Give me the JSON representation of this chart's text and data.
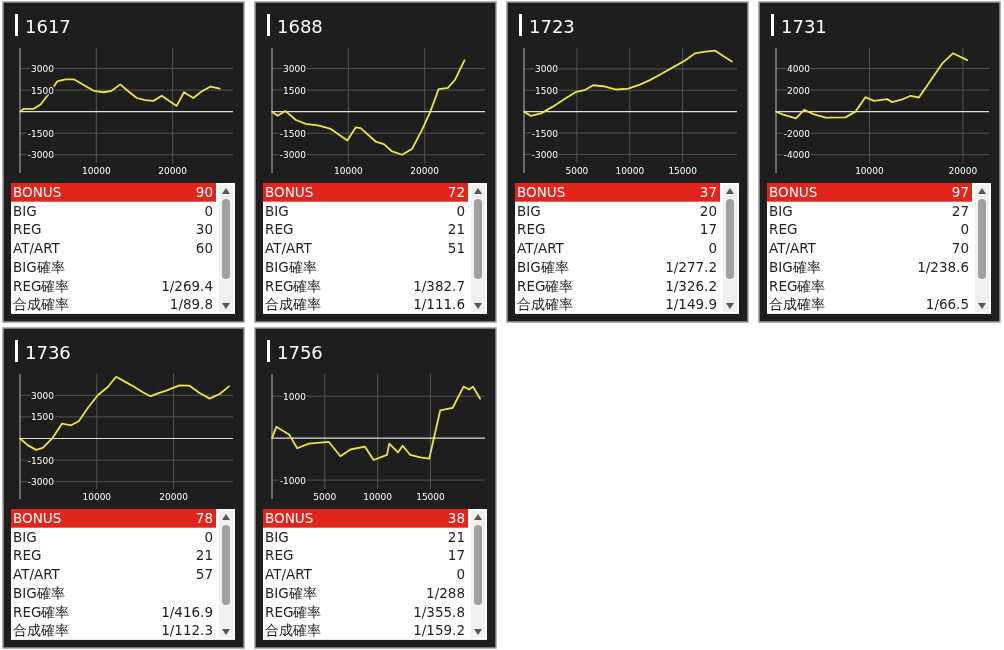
{
  "chart_data": [
    {
      "type": "line",
      "title": "1617",
      "color": "#ebe24e",
      "grid": true,
      "xlim": [
        0,
        27900
      ],
      "ylim": [
        -4270,
        4430
      ],
      "xticks": [
        10000,
        20000
      ],
      "yticks": [
        -3000,
        -1500,
        1500,
        3000
      ],
      "ref_lines": [
        {
          "axis": "y",
          "value": 0
        }
      ],
      "x": [
        0,
        500,
        1800,
        2700,
        4000,
        4870,
        5960,
        7050,
        8350,
        9650,
        10960,
        12000,
        13130,
        14220,
        15300,
        16400,
        17480,
        18570,
        19650,
        20520,
        21480,
        22700,
        23780,
        24960,
        26170
      ],
      "values": [
        0,
        200,
        200,
        500,
        1400,
        2100,
        2250,
        2250,
        1850,
        1450,
        1350,
        1450,
        1900,
        1400,
        950,
        800,
        750,
        1100,
        700,
        400,
        1350,
        950,
        1400,
        1750,
        1600
      ]
    },
    {
      "type": "other",
      "categories": [
        "BONUS",
        "BIG",
        "REG",
        "AT/ART",
        "BIG確率",
        "REG確率",
        "合成確率"
      ],
      "value_labels": [
        "90",
        "0",
        "30",
        "60",
        null,
        "1/269.4",
        "1/89.8"
      ]
    },
    {
      "type": "line",
      "title": "1688",
      "color": "#ebe24e",
      "grid": true,
      "xlim": [
        0,
        27900
      ],
      "ylim": [
        -4270,
        4430
      ],
      "xticks": [
        10000,
        20000
      ],
      "yticks": [
        -3000,
        -1500,
        1500,
        3000
      ],
      "ref_lines": [
        {
          "axis": "y",
          "value": 0
        }
      ],
      "x": [
        0,
        740,
        1740,
        3130,
        4430,
        6170,
        7700,
        9870,
        10960,
        11610,
        13570,
        14650,
        15740,
        17040,
        18350,
        19650,
        20740,
        21830,
        23040,
        24000,
        25220
      ],
      "values": [
        0,
        -280,
        50,
        -580,
        -850,
        -970,
        -1200,
        -2000,
        -1100,
        -1150,
        -2080,
        -2260,
        -2770,
        -3000,
        -2590,
        -1270,
        0,
        1570,
        1660,
        2240,
        3580
      ]
    },
    {
      "type": "other",
      "categories": [
        "BONUS",
        "BIG",
        "REG",
        "AT/ART",
        "BIG確率",
        "REG確率",
        "合成確率"
      ],
      "value_labels": [
        "72",
        "0",
        "21",
        "51",
        null,
        "1/382.7",
        "1/111.6"
      ]
    },
    {
      "type": "line",
      "title": "1723",
      "color": "#ebe24e",
      "grid": true,
      "xlim": [
        0,
        20130
      ],
      "ylim": [
        -4300,
        4460
      ],
      "xticks": [
        5000,
        10000,
        15000
      ],
      "yticks": [
        -3000,
        -1500,
        1500,
        3000
      ],
      "ref_lines": [
        {
          "axis": "y",
          "value": 0
        }
      ],
      "x": [
        0,
        660,
        1610,
        2720,
        3830,
        4940,
        5730,
        6520,
        7470,
        8730,
        9840,
        10950,
        11900,
        13000,
        14110,
        15220,
        16170,
        17120,
        18070,
        18860,
        19650
      ],
      "values": [
        0,
        -300,
        -120,
        350,
        880,
        1390,
        1500,
        1850,
        1780,
        1550,
        1620,
        1890,
        2210,
        2650,
        3120,
        3580,
        4090,
        4210,
        4270,
        3880,
        3510
      ]
    },
    {
      "type": "other",
      "categories": [
        "BONUS",
        "BIG",
        "REG",
        "AT/ART",
        "BIG確率",
        "REG確率",
        "合成確率"
      ],
      "value_labels": [
        "37",
        "20",
        "17",
        "0",
        "1/277.2",
        "1/326.2",
        "1/149.9"
      ]
    },
    {
      "type": "line",
      "title": "1731",
      "color": "#ebe24e",
      "grid": true,
      "xlim": [
        0,
        22790
      ],
      "ylim": [
        -5690,
        5900
      ],
      "xticks": [
        10000,
        20000
      ],
      "yticks": [
        -4000,
        -2000,
        2000,
        4000
      ],
      "ref_lines": [
        {
          "axis": "y",
          "value": 0
        }
      ],
      "x": [
        0,
        860,
        2140,
        3000,
        4070,
        5320,
        7430,
        8500,
        9570,
        10460,
        11890,
        12430,
        13500,
        14390,
        15290,
        16360,
        17790,
        18930,
        20460
      ],
      "values": [
        0,
        -310,
        -620,
        160,
        -250,
        -560,
        -530,
        0,
        1340,
        1000,
        1160,
        880,
        1130,
        1470,
        1310,
        2660,
        4470,
        5410,
        4780
      ]
    },
    {
      "type": "other",
      "categories": [
        "BONUS",
        "BIG",
        "REG",
        "AT/ART",
        "BIG確率",
        "REG確率",
        "合成確率"
      ],
      "value_labels": [
        "97",
        "27",
        "0",
        "70",
        "1/238.6",
        null,
        "1/66.5"
      ]
    },
    {
      "type": "line",
      "title": "1736",
      "color": "#ebe24e",
      "grid": true,
      "xlim": [
        0,
        27740
      ],
      "ylim": [
        -4200,
        4480
      ],
      "xticks": [
        10000,
        20000
      ],
      "yticks": [
        -3000,
        -1500,
        1500,
        3000
      ],
      "ref_lines": [
        {
          "axis": "y",
          "value": 0
        }
      ],
      "x": [
        0,
        1000,
        2090,
        2960,
        4260,
        5480,
        6650,
        7650,
        8830,
        10130,
        11430,
        12520,
        13830,
        14910,
        16000,
        16960,
        17960,
        19040,
        20780,
        22090,
        23390,
        24700,
        26000,
        27220
      ],
      "values": [
        0,
        -460,
        -790,
        -650,
        50,
        1040,
        920,
        1200,
        2120,
        3000,
        3580,
        4290,
        3900,
        3580,
        3210,
        2930,
        3140,
        3320,
        3690,
        3670,
        3160,
        2770,
        3090,
        3620
      ]
    },
    {
      "type": "other",
      "categories": [
        "BONUS",
        "BIG",
        "REG",
        "AT/ART",
        "BIG確率",
        "REG確率",
        "合成確率"
      ],
      "value_labels": [
        "78",
        "0",
        "21",
        "57",
        null,
        "1/416.9",
        "1/112.3"
      ]
    },
    {
      "type": "line",
      "title": "1756",
      "color": "#ebe24e",
      "grid": true,
      "xlim": [
        0,
        20160
      ],
      "ylim": [
        -1450,
        1530
      ],
      "xticks": [
        5000,
        10000,
        15000
      ],
      "yticks": [
        -1000,
        1000
      ],
      "ref_lines": [
        {
          "axis": "y",
          "value": 0
        }
      ],
      "x": [
        0,
        410,
        1610,
        2390,
        3490,
        5380,
        6480,
        7420,
        8780,
        9620,
        10880,
        11100,
        11920,
        12360,
        13090,
        14030,
        14880,
        15920,
        17090,
        18130,
        18660,
        19010,
        19700
      ],
      "values": [
        0,
        270,
        90,
        -240,
        -130,
        -90,
        -430,
        -270,
        -200,
        -520,
        -400,
        -130,
        -340,
        -180,
        -400,
        -460,
        -490,
        660,
        720,
        1230,
        1160,
        1230,
        940
      ]
    },
    {
      "type": "other",
      "categories": [
        "BONUS",
        "BIG",
        "REG",
        "AT/ART",
        "BIG確率",
        "REG確率",
        "合成確率"
      ],
      "value_labels": [
        "38",
        "21",
        "17",
        "0",
        "1/288",
        "1/355.8",
        "1/159.2"
      ]
    }
  ]
}
